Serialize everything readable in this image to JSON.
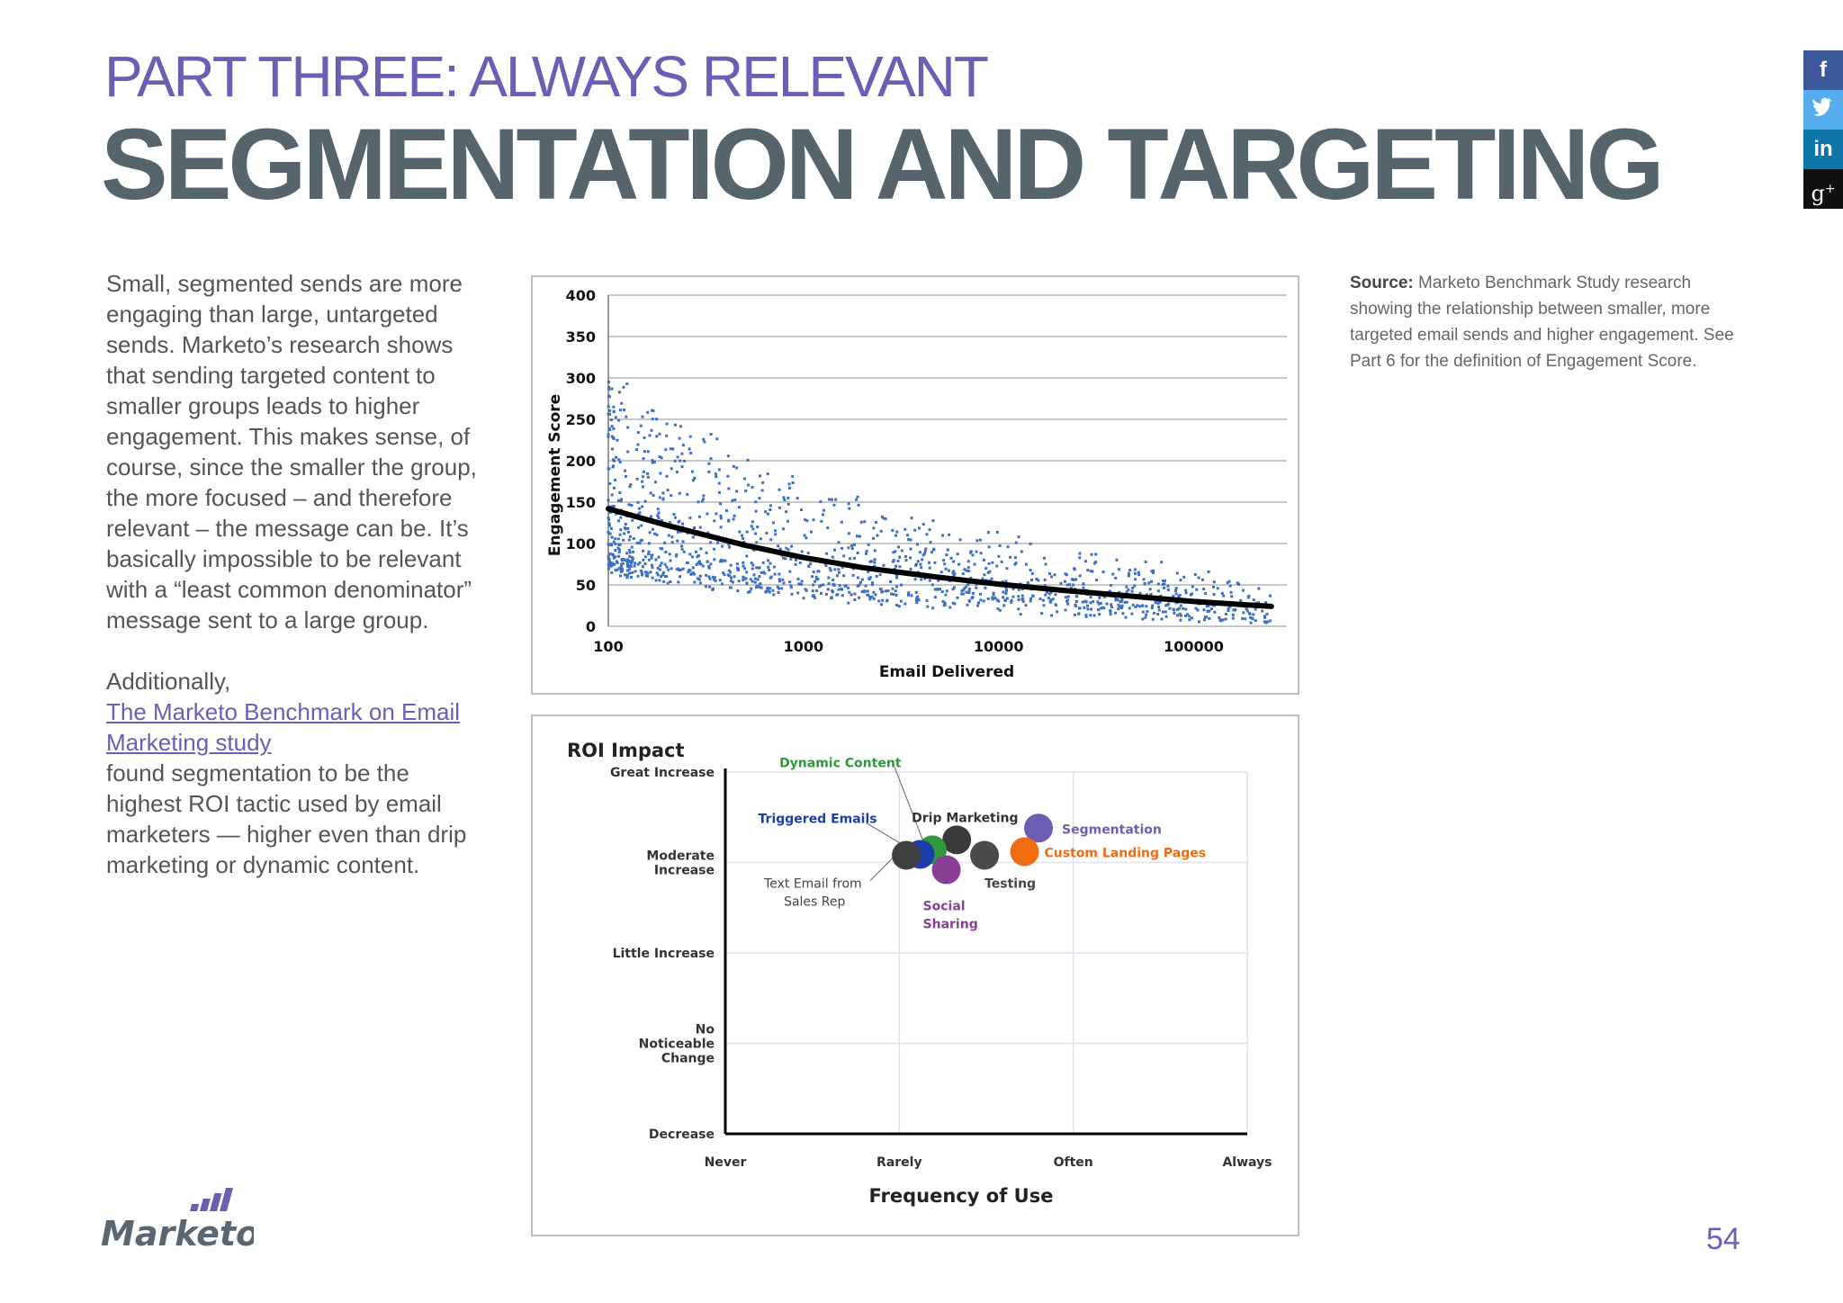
{
  "header": {
    "kicker": "PART THREE: ALWAYS RELEVANT",
    "title": "SEGMENTATION AND TARGETING"
  },
  "social": [
    {
      "icon": "facebook-icon",
      "glyph": "f",
      "color": "#3b5998"
    },
    {
      "icon": "twitter-icon",
      "glyph": "t",
      "color": "#55acee"
    },
    {
      "icon": "linkedin-icon",
      "glyph": "in",
      "color": "#0e76a8"
    },
    {
      "icon": "google-plus-icon",
      "glyph": "g+",
      "color": "#111111"
    }
  ],
  "body": {
    "paragraph1": "Small, segmented sends are more engaging than large, untargeted sends. Marketo’s research shows that sending targeted content to smaller groups leads to higher engagement. This makes sense, of course, since the smaller the group, the more focused – and therefore relevant – the message can be.  It’s basically impossible to be relevant with a “least common denominator” message sent to a large group.",
    "paragraph2_intro": "Additionally,",
    "link_text": "The Marketo Benchmark on Email Marketing study",
    "paragraph2_rest": "found segmentation to be the highest ROI tactic used by email marketers — higher even than drip marketing or dynamic content."
  },
  "source": {
    "label": "Source:",
    "text": "Marketo Benchmark Study research showing the relationship between smaller, more targeted email sends and higher engagement. See Part 6 for the definition of Engagement Score."
  },
  "chart_data": [
    {
      "type": "scatter",
      "title": "",
      "xlabel": "Email Delivered",
      "ylabel": "Engagement Score",
      "x_scale": "log",
      "xlim": [
        100,
        300000
      ],
      "ylim": [
        0,
        400
      ],
      "x_ticks": [
        100,
        1000,
        10000,
        100000
      ],
      "x_tick_labels": [
        "100",
        "1000",
        "10000",
        "100000"
      ],
      "y_ticks": [
        0,
        50,
        100,
        150,
        200,
        250,
        300,
        350,
        400
      ],
      "grid": true,
      "point_color": "#3f6fc2",
      "trendline": {
        "x": [
          100,
          200,
          500,
          1000,
          2000,
          5000,
          10000,
          20000,
          50000,
          100000,
          250000
        ],
        "y": [
          142,
          122,
          98,
          83,
          71,
          59,
          51,
          44,
          36,
          30,
          24
        ]
      },
      "points_note_count": 1400
    },
    {
      "type": "scatter",
      "title": "ROI Impact",
      "xlabel": "Frequency of Use",
      "ylabel": "",
      "x_categories": [
        "Never",
        "Rarely",
        "Often",
        "Always"
      ],
      "y_categories": [
        "Decrease",
        "No Noticeable Change",
        "Little Increase",
        "Moderate Increase",
        "Great Increase"
      ],
      "grid": true,
      "points": [
        {
          "label": "Segmentation",
          "x": 1.8,
          "y": 3.38,
          "color": "#6a5fb5",
          "label_color": "#6a5fb5"
        },
        {
          "label": "Custom Landing Pages",
          "x": 1.72,
          "y": 3.12,
          "color": "#ef6c0f",
          "label_color": "#ef6c0f"
        },
        {
          "label": "Drip Marketing",
          "x": 1.33,
          "y": 3.25,
          "color": "#3a3a3a",
          "label_color": "#333333"
        },
        {
          "label": "Testing",
          "x": 1.49,
          "y": 3.08,
          "color": "#4a4a4a",
          "label_color": "#444444"
        },
        {
          "label": "Dynamic Content",
          "x": 1.19,
          "y": 3.14,
          "color": "#2e9a3c",
          "label_color": "#2e9a3c"
        },
        {
          "label": "Triggered Emails",
          "x": 1.12,
          "y": 3.09,
          "color": "#1d3ea8",
          "label_color": "#1d3ea8"
        },
        {
          "label": "Text Email from Sales Rep",
          "x": 1.04,
          "y": 3.08,
          "color": "#3f3f3f",
          "label_color": "#444444"
        },
        {
          "label": "Social Sharing",
          "x": 1.27,
          "y": 2.92,
          "color": "#8a3f96",
          "label_color": "#8a3f96"
        }
      ]
    }
  ],
  "footer": {
    "logo_text": "Marketo",
    "page_number": "54"
  }
}
